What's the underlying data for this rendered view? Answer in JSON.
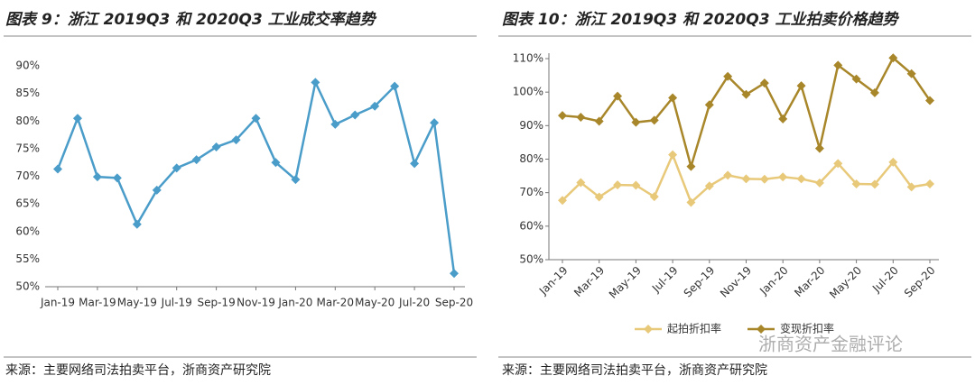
{
  "chart_data": [
    {
      "type": "line",
      "title": "图表 9：浙江 2019Q3 和 2020Q3 工业成交率趋势",
      "source": "来源：主要网络司法拍卖平台，浙商资产研究院",
      "categories": [
        "Jan-19",
        null,
        "Mar-19",
        null,
        "May-19",
        null,
        "Jul-19",
        null,
        "Sep-19",
        null,
        "Nov-19",
        null,
        "Jan-20",
        null,
        "Mar-20",
        null,
        "May-20",
        null,
        "Jul-20",
        null,
        "Sep-20"
      ],
      "values": [
        71.3,
        80.5,
        69.9,
        69.7,
        61.3,
        67.5,
        71.5,
        73.0,
        75.3,
        76.6,
        80.5,
        72.5,
        69.4,
        87.0,
        79.4,
        81.1,
        82.7,
        86.3,
        72.3,
        79.7,
        52.4
      ],
      "color": "#4a9cc9",
      "ylim": [
        50,
        90
      ],
      "yticks": [
        {
          "value": 50,
          "label": "50%"
        },
        {
          "value": 55,
          "label": "55%"
        },
        {
          "value": 60,
          "label": "60%"
        },
        {
          "value": 65,
          "label": "65%"
        },
        {
          "value": 70,
          "label": "70%"
        },
        {
          "value": 75,
          "label": "75%"
        },
        {
          "value": 80,
          "label": "80%"
        },
        {
          "value": 85,
          "label": "85%"
        },
        {
          "value": 90,
          "label": "90%"
        }
      ],
      "grid": false
    },
    {
      "type": "line",
      "title": "图表 10：浙江 2019Q3 和 2020Q3 工业拍卖价格趋势",
      "source": "来源：主要网络司法拍卖平台，浙商资产研究院",
      "categories": [
        "Jan-19",
        null,
        "Mar-19",
        null,
        "May-19",
        null,
        "Jul-19",
        null,
        "Sep-19",
        null,
        "Nov-19",
        null,
        "Jan-20",
        null,
        "Mar-20",
        null,
        "May-20",
        null,
        "Jul-20",
        null,
        "Sep-20"
      ],
      "series": [
        {
          "name": "起拍折扣率",
          "color": "#e8c97a",
          "values": [
            67.7,
            73.0,
            68.7,
            72.3,
            72.2,
            68.8,
            81.3,
            67.1,
            72.0,
            75.2,
            74.1,
            74.0,
            74.7,
            74.1,
            72.9,
            78.7,
            72.6,
            72.5,
            79.1,
            71.7,
            72.6
          ]
        },
        {
          "name": "变现折扣率",
          "color": "#a8862a",
          "values": [
            93.0,
            92.5,
            91.3,
            98.8,
            91.0,
            91.6,
            98.3,
            77.8,
            96.2,
            104.7,
            99.3,
            102.7,
            92.0,
            101.9,
            83.2,
            108.0,
            103.9,
            99.8,
            110.2,
            105.5,
            97.5
          ]
        }
      ],
      "ylim": [
        50,
        110
      ],
      "yticks": [
        {
          "value": 50,
          "label": "50%"
        },
        {
          "value": 60,
          "label": "60%"
        },
        {
          "value": 70,
          "label": "70%"
        },
        {
          "value": 80,
          "label": "80%"
        },
        {
          "value": 90,
          "label": "90%"
        },
        {
          "value": 100,
          "label": "100%"
        },
        {
          "value": 110,
          "label": "110%"
        }
      ],
      "grid": false
    }
  ],
  "watermark": "浙商资产金融评论"
}
